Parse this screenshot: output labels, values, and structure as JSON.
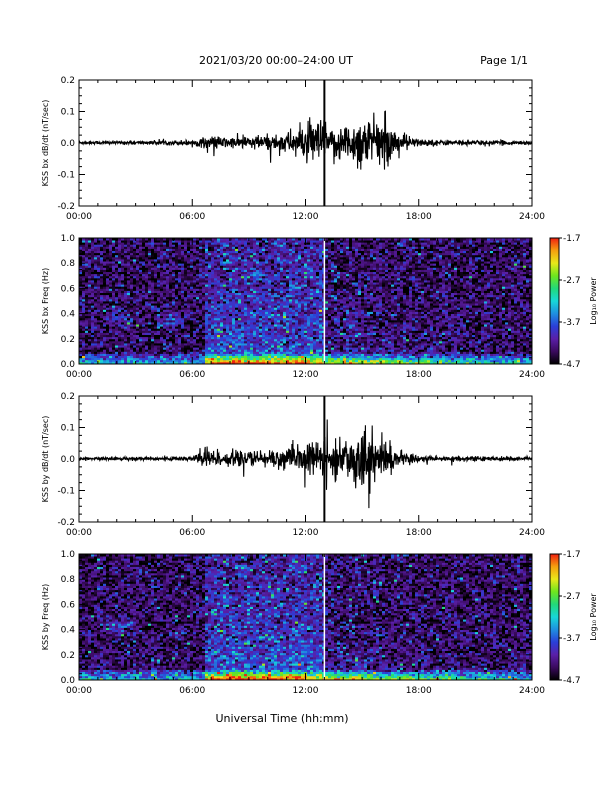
{
  "header": {
    "title": "2021/03/20  00:00–24:00 UT",
    "page": "Page 1/1"
  },
  "x_axis": {
    "label": "Universal Time (hh:mm)",
    "ticks": [
      "00:00",
      "06:00",
      "12:00",
      "18:00",
      "24:00"
    ],
    "range_hours": [
      0,
      24
    ]
  },
  "colorbar": {
    "label": "Log₁₀ Power",
    "ticks": [
      "-1.7",
      "-2.7",
      "-3.7",
      "-4.7"
    ],
    "range": [
      -4.7,
      -1.7
    ],
    "colors": [
      "#000000",
      "#3a0a5e",
      "#5a1fa8",
      "#2a3fd8",
      "#1f8fe0",
      "#17d8d8",
      "#22d87a",
      "#6ee61e",
      "#e8e81a",
      "#f5a00f",
      "#f02010"
    ]
  },
  "chart_data": [
    {
      "type": "line",
      "panel": "bx-dbdt",
      "ylabel": "KSS bx dB/dt (nT/sec)",
      "ylim": [
        -0.2,
        0.2
      ],
      "yticks": [
        "0.2",
        "0.1",
        "0.0",
        "-0.1",
        "-0.2"
      ],
      "color": "#000000",
      "envelope": {
        "hours": [
          0,
          2,
          4,
          5,
          6,
          7,
          8,
          9,
          10,
          11,
          12,
          12.5,
          13,
          13.3,
          13.5,
          14,
          14.5,
          15,
          15.5,
          16,
          16.5,
          17,
          18,
          20,
          22,
          24
        ],
        "amplitude": [
          0.004,
          0.005,
          0.005,
          0.007,
          0.008,
          0.02,
          0.015,
          0.02,
          0.022,
          0.03,
          0.05,
          0.06,
          0.07,
          0.02,
          0.06,
          0.05,
          0.06,
          0.08,
          0.06,
          0.07,
          0.05,
          0.03,
          0.01,
          0.007,
          0.006,
          0.006
        ]
      },
      "spike": {
        "hour": 13.0,
        "max": 0.2,
        "min": -0.2
      }
    },
    {
      "type": "heatmap",
      "panel": "bx-freq",
      "ylabel": "KSS bx Freq (Hz)",
      "ylim": [
        0.0,
        1.0
      ],
      "yticks": [
        "1.0",
        "0.8",
        "0.6",
        "0.4",
        "0.2",
        "0.0"
      ],
      "background_log_power": -4.4,
      "active_interval_hours": [
        6.7,
        13.0
      ],
      "low_freq_band": {
        "max_freq": 0.08,
        "peak_log_power": -2.4,
        "peak_hours": [
          7,
          12
        ]
      },
      "blobs": [
        {
          "hour": 2.0,
          "freq": 0.38,
          "log_power": -3.8
        },
        {
          "hour": 4.8,
          "freq": 0.34,
          "log_power": -3.8
        }
      ],
      "gap_hour": 13.0
    },
    {
      "type": "line",
      "panel": "by-dbdt",
      "ylabel": "KSS by dB/dt (nT/sec)",
      "ylim": [
        -0.2,
        0.2
      ],
      "yticks": [
        "0.2",
        "0.1",
        "0.0",
        "-0.1",
        "-0.2"
      ],
      "color": "#000000",
      "envelope": {
        "hours": [
          0,
          2,
          4,
          5,
          6,
          6.7,
          7,
          8,
          9,
          10,
          11,
          12,
          12.5,
          13,
          13.3,
          13.5,
          14,
          14.5,
          15,
          15.5,
          16,
          16.5,
          17,
          18,
          20,
          22,
          24
        ],
        "amplitude": [
          0.004,
          0.005,
          0.005,
          0.006,
          0.008,
          0.04,
          0.025,
          0.02,
          0.02,
          0.025,
          0.03,
          0.04,
          0.05,
          0.06,
          0.02,
          0.05,
          0.05,
          0.07,
          0.09,
          0.07,
          0.06,
          0.04,
          0.02,
          0.01,
          0.007,
          0.006,
          0.005
        ]
      },
      "spike": {
        "hour": 13.0,
        "max": 0.2,
        "min": -0.2
      }
    },
    {
      "type": "heatmap",
      "panel": "by-freq",
      "ylabel": "KSS by Freq (Hz)",
      "ylim": [
        0.0,
        1.0
      ],
      "yticks": [
        "1.0",
        "0.8",
        "0.6",
        "0.4",
        "0.2",
        "0.0"
      ],
      "background_log_power": -4.4,
      "active_interval_hours": [
        6.7,
        13.0
      ],
      "low_freq_band": {
        "max_freq": 0.08,
        "peak_log_power": -2.4,
        "peak_hours": [
          7,
          12
        ]
      },
      "blobs": [
        {
          "hour": 2.0,
          "freq": 0.43,
          "log_power": -3.8
        }
      ],
      "gap_hour": 13.0
    }
  ]
}
